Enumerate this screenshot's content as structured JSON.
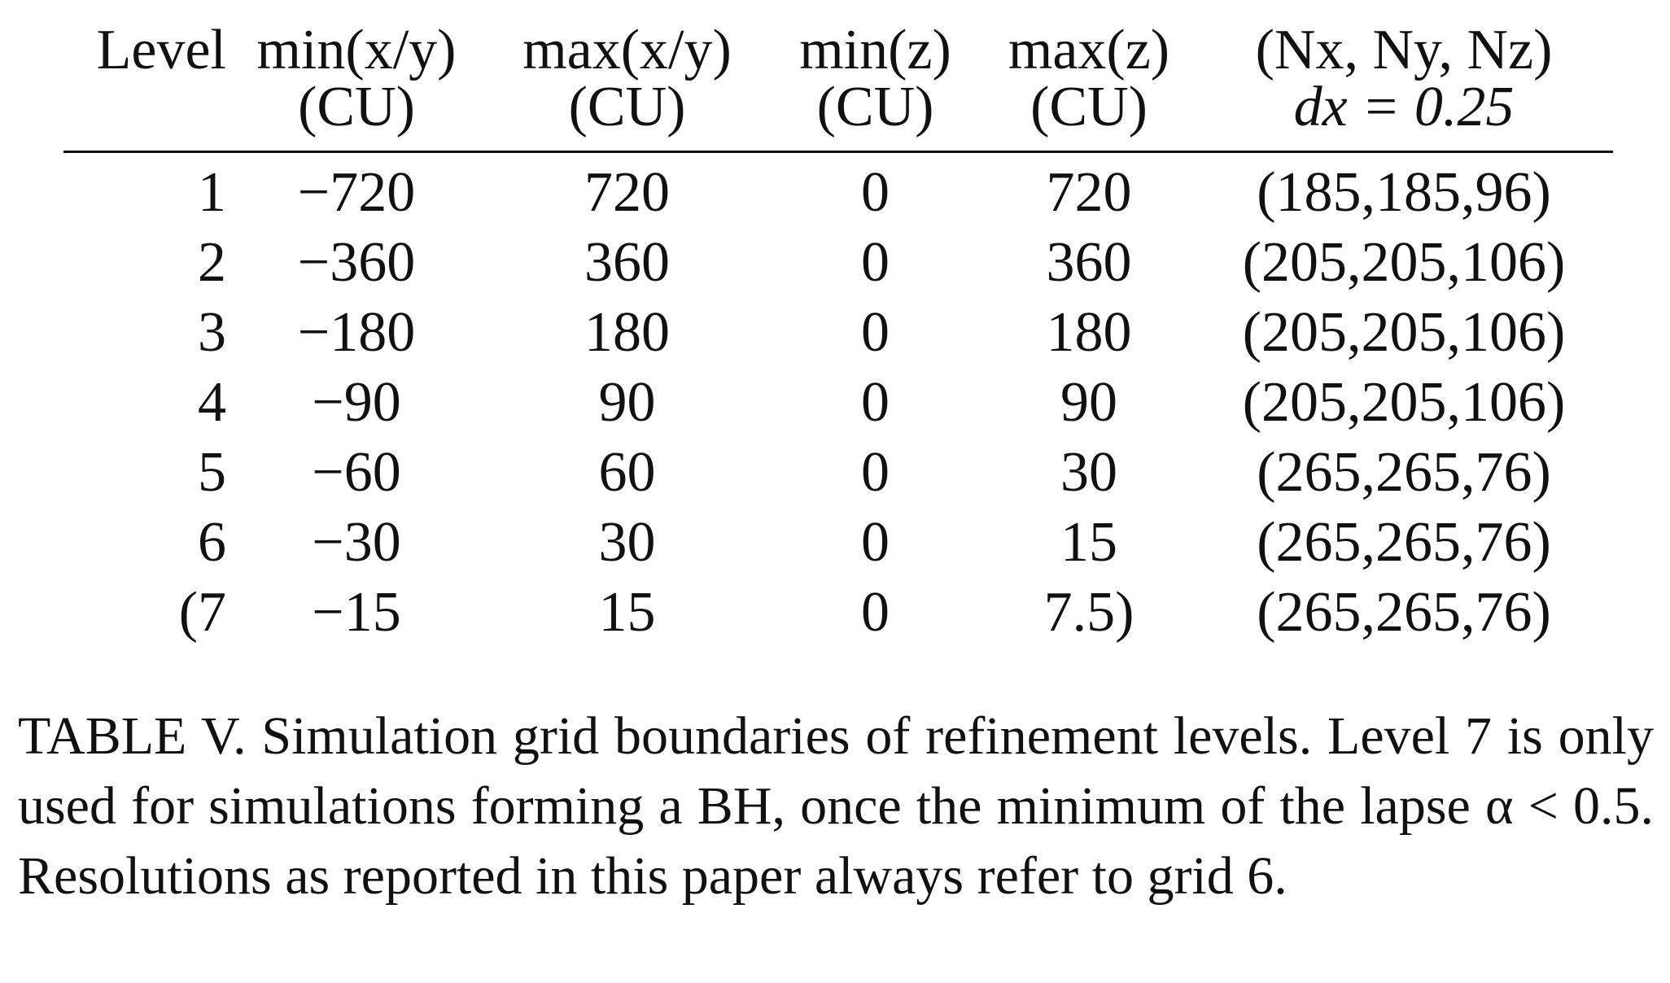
{
  "table": {
    "headers": [
      {
        "line1": "Level",
        "line2": ""
      },
      {
        "line1": "min(x/y)",
        "line2": "(CU)"
      },
      {
        "line1": "max(x/y)",
        "line2": "(CU)"
      },
      {
        "line1": "min(z)",
        "line2": "(CU)"
      },
      {
        "line1": "max(z)",
        "line2": "(CU)"
      },
      {
        "line1": "(Nx, Ny, Nz)",
        "line2": "dx = 0.25"
      }
    ],
    "rows": [
      [
        "1",
        "−720",
        "720",
        "0",
        "720",
        "(185,185,96)"
      ],
      [
        "2",
        "−360",
        "360",
        "0",
        "360",
        "(205,205,106)"
      ],
      [
        "3",
        "−180",
        "180",
        "0",
        "180",
        "(205,205,106)"
      ],
      [
        "4",
        "−90",
        "90",
        "0",
        "90",
        "(205,205,106)"
      ],
      [
        "5",
        "−60",
        "60",
        "0",
        "30",
        "(265,265,76)"
      ],
      [
        "6",
        "−30",
        "30",
        "0",
        "15",
        "(265,265,76)"
      ],
      [
        "(7",
        "−15",
        "15",
        "0",
        "7.5)",
        "(265,265,76)"
      ]
    ]
  },
  "caption": "TABLE V. Simulation grid boundaries of refinement levels. Level 7 is only used for simulations forming a BH, once the minimum of the lapse α < 0.5. Resolutions as reported in this paper always refer to grid 6."
}
